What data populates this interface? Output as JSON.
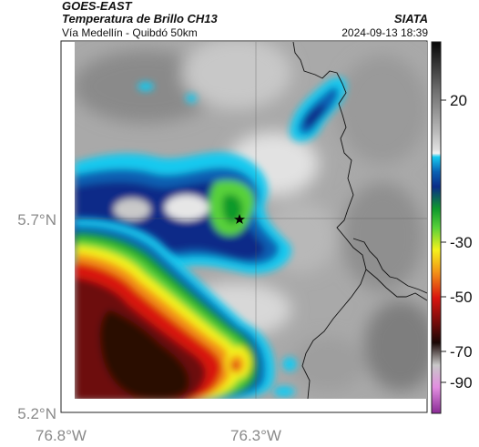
{
  "header": {
    "satellite": "GOES-EAST",
    "product": "Temperatura de Brillo CH13",
    "region": "Vía Medellín - Quibdó 50km",
    "org": "SIATA",
    "datetime": "2024-09-13 18:39"
  },
  "map": {
    "lat_labels": [
      "5.7°N",
      "5.2°N"
    ],
    "lon_labels": [
      "76.8°W",
      "76.3°W"
    ],
    "marker": "star-marker"
  },
  "colorbar": {
    "labels": [
      "20",
      "-30",
      "-50",
      "-70",
      "-90"
    ]
  }
}
